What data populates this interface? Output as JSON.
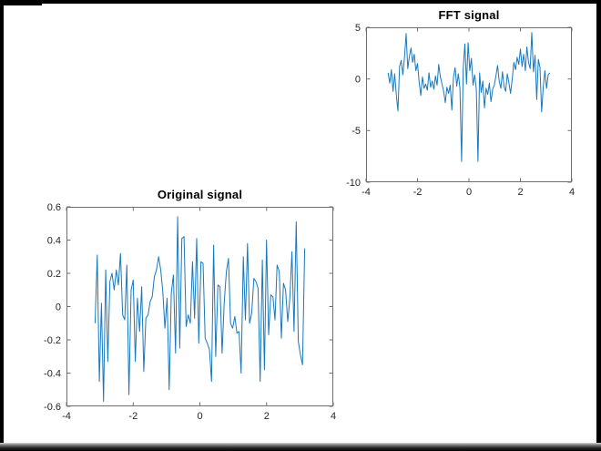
{
  "window": {
    "background_color": "#ffffff",
    "frame_color": "#000000"
  },
  "chart_data": [
    {
      "id": "fft-signal",
      "type": "line",
      "title": "FFT signal",
      "xlabel": "",
      "ylabel": "",
      "xlim": [
        -4,
        4
      ],
      "ylim": [
        -10,
        5
      ],
      "xticks": [
        -4,
        -2,
        0,
        2,
        4
      ],
      "yticks": [
        -10,
        -5,
        0,
        5
      ],
      "grid": false,
      "x_range": [
        -3.1416,
        3.1416
      ],
      "line_color": "#1878be",
      "axis_color": "#6e6e6e",
      "tick_label_color": "#262626",
      "values": [
        0.6,
        -0.4,
        0.9,
        -1.2,
        0.5,
        -1.5,
        -3.1,
        1.2,
        1.8,
        0.4,
        2.1,
        4.4,
        1.0,
        2.2,
        3.0,
        1.6,
        2.4,
        0.8,
        1.5,
        -0.3,
        -1.6,
        0.2,
        -0.9,
        -0.5,
        -1.1,
        0.6,
        -0.8,
        -0.2,
        -1.0,
        0.3,
        -0.6,
        1.4,
        0.2,
        -0.5,
        -1.2,
        -2.3,
        -0.8,
        -1.4,
        -0.6,
        -3.0,
        0.2,
        1.1,
        -0.7,
        0.5,
        -0.9,
        -8.0,
        1.0,
        3.4,
        -0.5,
        3.5,
        0.8,
        2.0,
        -0.6,
        0.4,
        -1.0,
        -8.0,
        0.6,
        -1.3,
        -0.2,
        -2.8,
        -0.9,
        -1.5,
        -0.4,
        -2.2,
        -1.0,
        -0.6,
        0.3,
        1.3,
        -0.2,
        -0.9,
        0.7,
        -0.7,
        -1.2,
        0.5,
        -0.4,
        -1.4,
        0.0,
        1.6,
        0.9,
        2.1,
        1.4,
        2.9,
        1.2,
        2.4,
        0.8,
        3.1,
        1.6,
        1.0,
        4.5,
        0.7,
        2.3,
        -2.0,
        1.9,
        1.1,
        -3.2,
        -0.8,
        0.8,
        -0.9,
        0.4,
        0.6
      ]
    },
    {
      "id": "original-signal",
      "type": "line",
      "title": "Original signal",
      "xlabel": "",
      "ylabel": "",
      "xlim": [
        -4,
        4
      ],
      "ylim": [
        -0.6,
        0.6
      ],
      "xticks": [
        -4,
        -2,
        0,
        2,
        4
      ],
      "yticks": [
        -0.6,
        -0.4,
        -0.2,
        0,
        0.2,
        0.4,
        0.6
      ],
      "grid": false,
      "x_range": [
        -3.1416,
        3.1416
      ],
      "line_color": "#1878be",
      "axis_color": "#6e6e6e",
      "tick_label_color": "#262626",
      "values": [
        -0.1,
        0.31,
        -0.45,
        0.02,
        -0.57,
        0.22,
        -0.33,
        0.15,
        0.2,
        0.1,
        0.22,
        0.13,
        0.32,
        -0.05,
        -0.08,
        0.25,
        -0.53,
        0.1,
        0.16,
        -0.33,
        0.05,
        -0.15,
        0.12,
        -0.39,
        -0.07,
        -0.05,
        0.03,
        0.06,
        0.18,
        0.22,
        0.3,
        0.22,
        0.09,
        -0.13,
        0.05,
        -0.5,
        0.08,
        0.19,
        -0.28,
        0.54,
        -0.25,
        0.41,
        0.42,
        -0.12,
        -0.05,
        -0.1,
        0.27,
        -0.07,
        0.41,
        -0.22,
        0.27,
        0.26,
        -0.19,
        -0.22,
        -0.26,
        -0.45,
        0.37,
        -0.3,
        0.13,
        0.12,
        -0.28,
        0.02,
        0.21,
        0.29,
        -0.1,
        -0.13,
        -0.06,
        -0.16,
        -0.15,
        -0.4,
        0.3,
        -0.08,
        0.38,
        -0.1,
        -0.04,
        0.17,
        0.15,
        0.11,
        -0.45,
        0.28,
        -0.38,
        0.4,
        -0.17,
        0.07,
        0.06,
        -0.08,
        0.25,
        0.21,
        -0.19,
        0.14,
        0.1,
        -0.09,
        0.05,
        0.33,
        -0.15,
        0.51,
        -0.21,
        -0.29,
        -0.35,
        0.35
      ]
    }
  ]
}
